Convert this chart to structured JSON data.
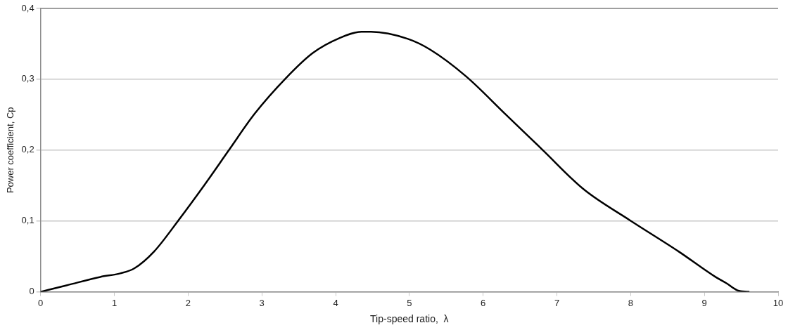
{
  "chart_data": {
    "type": "line",
    "xlabel": "Tip-speed ratio,  λ",
    "ylabel": "Power coefficient, Cp",
    "x": [
      0,
      0.35,
      0.81,
      1.08,
      1.27,
      1.54,
      1.87,
      2.23,
      2.56,
      2.9,
      3.33,
      3.69,
      4.05,
      4.35,
      4.48,
      4.98,
      5.28,
      5.77,
      6.3,
      6.8,
      7.36,
      7.99,
      8.65,
      9.15,
      9.3,
      9.45,
      9.6
    ],
    "series": [
      {
        "color": "#000000",
        "values": [
          0,
          0.009,
          0.021,
          0.026,
          0.033,
          0.057,
          0.101,
          0.152,
          0.201,
          0.251,
          0.302,
          0.337,
          0.358,
          0.367,
          0.367,
          0.357,
          0.342,
          0.304,
          0.251,
          0.201,
          0.145,
          0.101,
          0.057,
          0.021,
          0.012,
          0.002,
          0
        ]
      }
    ],
    "xlim": [
      0,
      10
    ],
    "xticks": [
      0,
      1,
      2,
      3,
      4,
      5,
      6,
      7,
      8,
      9,
      10
    ],
    "ylim": [
      0,
      0.4
    ],
    "yticks": [
      0,
      {
        "value": 0.1,
        "label": "0,1"
      },
      {
        "value": 0.2,
        "label": "0,2"
      },
      {
        "value": 0.3,
        "label": "0,3"
      },
      {
        "value": 0.4,
        "label": "0,4"
      }
    ],
    "grid": "y",
    "marker": "none",
    "line_style": "solid"
  }
}
